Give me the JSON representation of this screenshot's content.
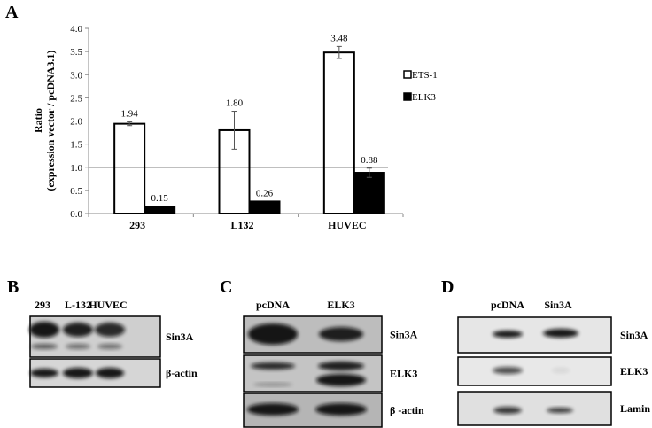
{
  "panels": {
    "A": "A",
    "B": "B",
    "C": "C",
    "D": "D"
  },
  "chart_data": {
    "type": "bar",
    "ylabel_line1": "Ratio",
    "ylabel_line2": "(expression vector / pcDNA3.1)",
    "categories": [
      "293",
      "L132",
      "HUVEC"
    ],
    "ylim": [
      0,
      4.0
    ],
    "yticks": [
      "0.0",
      "0.5",
      "1.0",
      "1.5",
      "2.0",
      "2.5",
      "3.0",
      "3.5",
      "4.0"
    ],
    "reference_line": 1.0,
    "grid": false,
    "legend_placement": "right",
    "series": [
      {
        "name": "ETS-1",
        "values": [
          1.94,
          1.8,
          3.48
        ],
        "errors": [
          0.04,
          0.41,
          0.13
        ],
        "labels": [
          "1.94",
          "1.80",
          "3.48"
        ],
        "color": "#ffffff"
      },
      {
        "name": "ELK3",
        "values": [
          0.15,
          0.26,
          0.88
        ],
        "errors": [
          0,
          0,
          0.1
        ],
        "labels": [
          "0.15",
          "0.26",
          "0.88"
        ],
        "color": "#000000"
      }
    ]
  },
  "blots": {
    "B": {
      "lanes": [
        "293",
        "L-132",
        "HUVEC"
      ],
      "rows": [
        "Sin3A",
        "β-actin"
      ]
    },
    "C": {
      "lanes": [
        "pcDNA",
        "ELK3"
      ],
      "rows": [
        "Sin3A",
        "ELK3",
        "β -actin"
      ]
    },
    "D": {
      "lanes": [
        "pcDNA",
        "Sin3A"
      ],
      "rows": [
        "Sin3A",
        "ELK3",
        "Lamin B"
      ]
    }
  }
}
